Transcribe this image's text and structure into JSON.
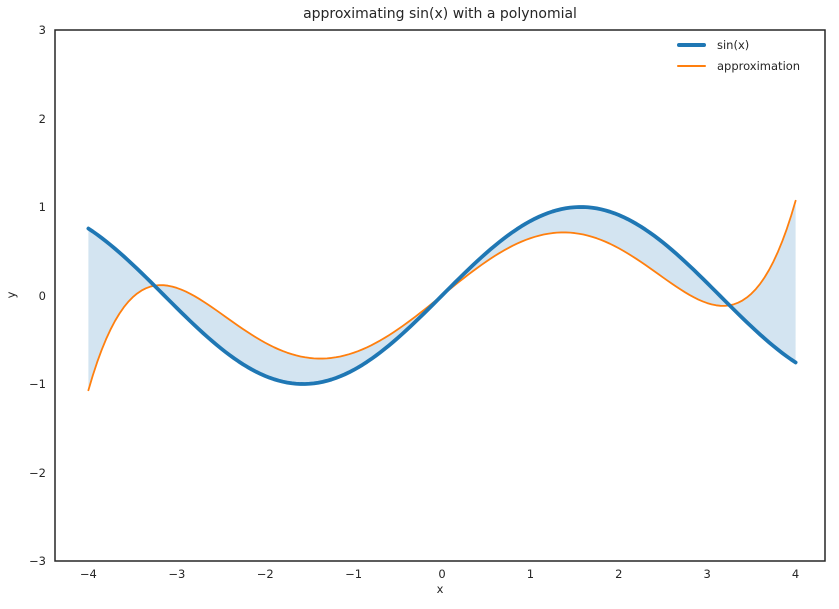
{
  "figure": {
    "background": "#ffffff",
    "text_color": "#262626",
    "spine_color": "#262626"
  },
  "chart_data": {
    "type": "line",
    "title": "approximating sin(x) with a polynomial",
    "xlabel": "x",
    "ylabel": "y",
    "xlim": [
      -4.4,
      4.4
    ],
    "ylim": [
      -3,
      3
    ],
    "grid": false,
    "xticks": [
      -4,
      -3,
      -2,
      -1,
      0,
      1,
      2,
      3,
      4
    ],
    "xtick_labels": [
      "−4",
      "−3",
      "−2",
      "−1",
      "0",
      "1",
      "2",
      "3",
      "4"
    ],
    "yticks": [
      3,
      2,
      1,
      0,
      -1,
      -2,
      -3
    ],
    "ytick_labels": [
      "3",
      "2",
      "1",
      "0",
      "−1",
      "−2",
      "−3"
    ],
    "legend": {
      "position": "upper right",
      "frame": false,
      "entries": [
        "sin(x)",
        "approximation"
      ]
    },
    "x_range": [
      -4,
      4
    ],
    "x_samples": [
      -4,
      -3.5,
      -3,
      -2.5,
      -2,
      -1.5,
      -1,
      -0.5,
      0,
      0.5,
      1,
      1.5,
      2,
      2.5,
      3,
      3.5,
      4
    ],
    "series": [
      {
        "name": "sin(x)",
        "color": "#1f77b4",
        "line_width": 3.8,
        "fn": "sin",
        "y_samples": [
          0.757,
          0.351,
          -0.141,
          -0.599,
          -0.909,
          -0.997,
          -0.841,
          -0.479,
          0.0,
          0.479,
          0.841,
          0.997,
          0.909,
          0.599,
          0.141,
          -0.351,
          -0.757
        ]
      },
      {
        "name": "approximation",
        "color": "#ff7f0e",
        "line_width": 1.8,
        "fn": "poly",
        "coefficients": {
          "x1": 0.8076,
          "x3": -0.16897,
          "x5": 0.008451
        },
        "y_samples": [
          -1.07,
          -0.021,
          0.086,
          -0.204,
          -0.534,
          -0.705,
          -0.647,
          -0.383,
          0.0,
          0.383,
          0.647,
          0.705,
          0.534,
          0.204,
          -0.086,
          0.021,
          1.07
        ]
      }
    ],
    "fill_between": {
      "between": [
        "sin(x)",
        "approximation"
      ],
      "color": "#d3e4f1"
    }
  }
}
